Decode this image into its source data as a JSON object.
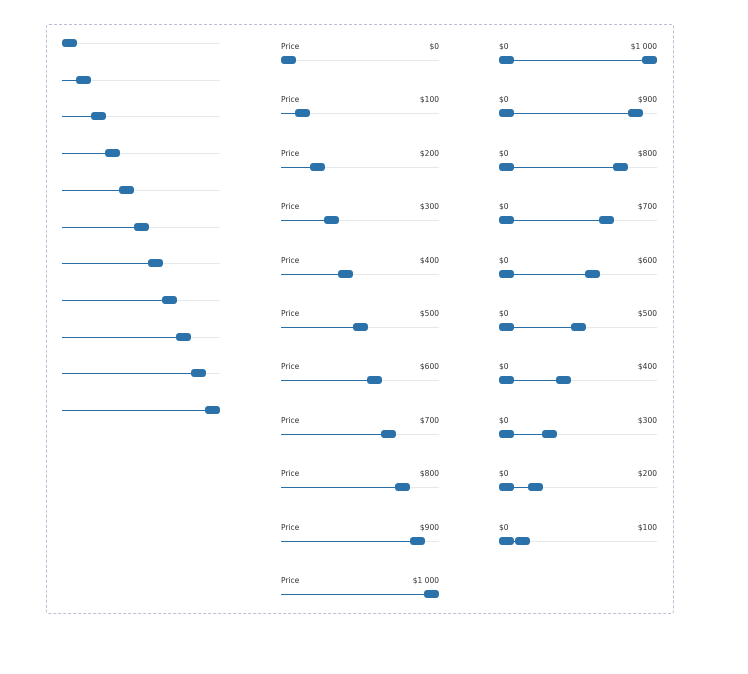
{
  "colors": {
    "accent": "#2c72aa",
    "track": "#e6e9ec",
    "border": "#b9c0d4"
  },
  "basic_sliders": {
    "values": [
      0,
      10,
      20,
      30,
      40,
      50,
      60,
      70,
      80,
      90,
      100
    ],
    "max": 100
  },
  "price_sliders": {
    "label": "Price",
    "max": 1000,
    "items": [
      {
        "value": 0,
        "display": "$0"
      },
      {
        "value": 100,
        "display": "$100"
      },
      {
        "value": 200,
        "display": "$200"
      },
      {
        "value": 300,
        "display": "$300"
      },
      {
        "value": 400,
        "display": "$400"
      },
      {
        "value": 500,
        "display": "$500"
      },
      {
        "value": 600,
        "display": "$600"
      },
      {
        "value": 700,
        "display": "$700"
      },
      {
        "value": 800,
        "display": "$800"
      },
      {
        "value": 900,
        "display": "$900"
      },
      {
        "value": 1000,
        "display": "$1 000"
      }
    ]
  },
  "range_sliders": {
    "max": 1000,
    "items": [
      {
        "min": 0,
        "max": 1000,
        "min_display": "$0",
        "max_display": "$1 000"
      },
      {
        "min": 0,
        "max": 900,
        "min_display": "$0",
        "max_display": "$900"
      },
      {
        "min": 0,
        "max": 800,
        "min_display": "$0",
        "max_display": "$800"
      },
      {
        "min": 0,
        "max": 700,
        "min_display": "$0",
        "max_display": "$700"
      },
      {
        "min": 0,
        "max": 600,
        "min_display": "$0",
        "max_display": "$600"
      },
      {
        "min": 0,
        "max": 500,
        "min_display": "$0",
        "max_display": "$500"
      },
      {
        "min": 0,
        "max": 400,
        "min_display": "$0",
        "max_display": "$400"
      },
      {
        "min": 0,
        "max": 300,
        "min_display": "$0",
        "max_display": "$300"
      },
      {
        "min": 0,
        "max": 200,
        "min_display": "$0",
        "max_display": "$200"
      },
      {
        "min": 0,
        "max": 100,
        "min_display": "$0",
        "max_display": "$100"
      }
    ]
  }
}
